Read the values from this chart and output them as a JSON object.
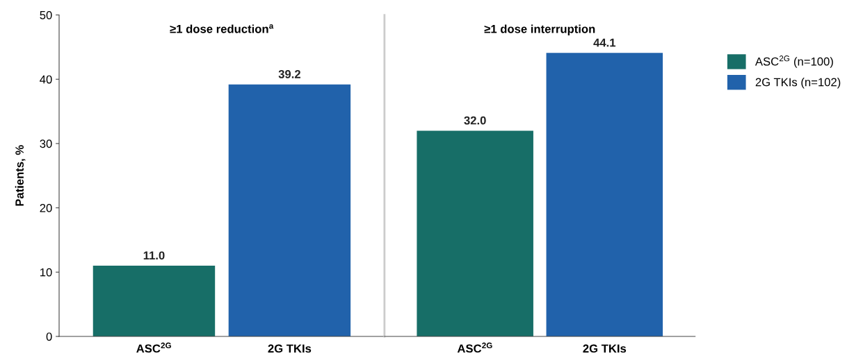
{
  "chart_data": [
    {
      "type": "bar",
      "title": "≥1 dose reduction$^{a}$",
      "ylabel": "Patients, %",
      "categories": [
        "ASC$^{2G}$",
        "2G TKIs"
      ],
      "series": [
        {
          "color": "#176e67",
          "values": [
            11.0,
            null
          ],
          "value_labels": [
            "11.0",
            null
          ]
        },
        {
          "color": "#2162ab",
          "values": [
            null,
            39.2
          ],
          "value_labels": [
            null,
            "39.2"
          ]
        }
      ],
      "ylim": [
        0,
        50
      ],
      "yticks": [
        0,
        10,
        20,
        30,
        40,
        50
      ],
      "grid": false,
      "legend": false
    },
    {
      "type": "bar",
      "title": "≥1 dose interruption",
      "categories": [
        "ASC$^{2G}$",
        "2G TKIs"
      ],
      "series": [
        {
          "name": "ASC$^{2G}$ (n=100)",
          "color": "#176e67",
          "values": [
            32.0,
            null
          ],
          "value_labels": [
            "32.0",
            null
          ]
        },
        {
          "name": "2G TKIs (n=102)",
          "color": "#2162ab",
          "values": [
            null,
            44.1
          ],
          "value_labels": [
            null,
            "44.1"
          ]
        }
      ],
      "ylim": [
        0,
        50
      ],
      "yticks": [
        0,
        10,
        20,
        30,
        40,
        50
      ],
      "tick_labels": "x",
      "grid": false,
      "legend": "right"
    }
  ]
}
